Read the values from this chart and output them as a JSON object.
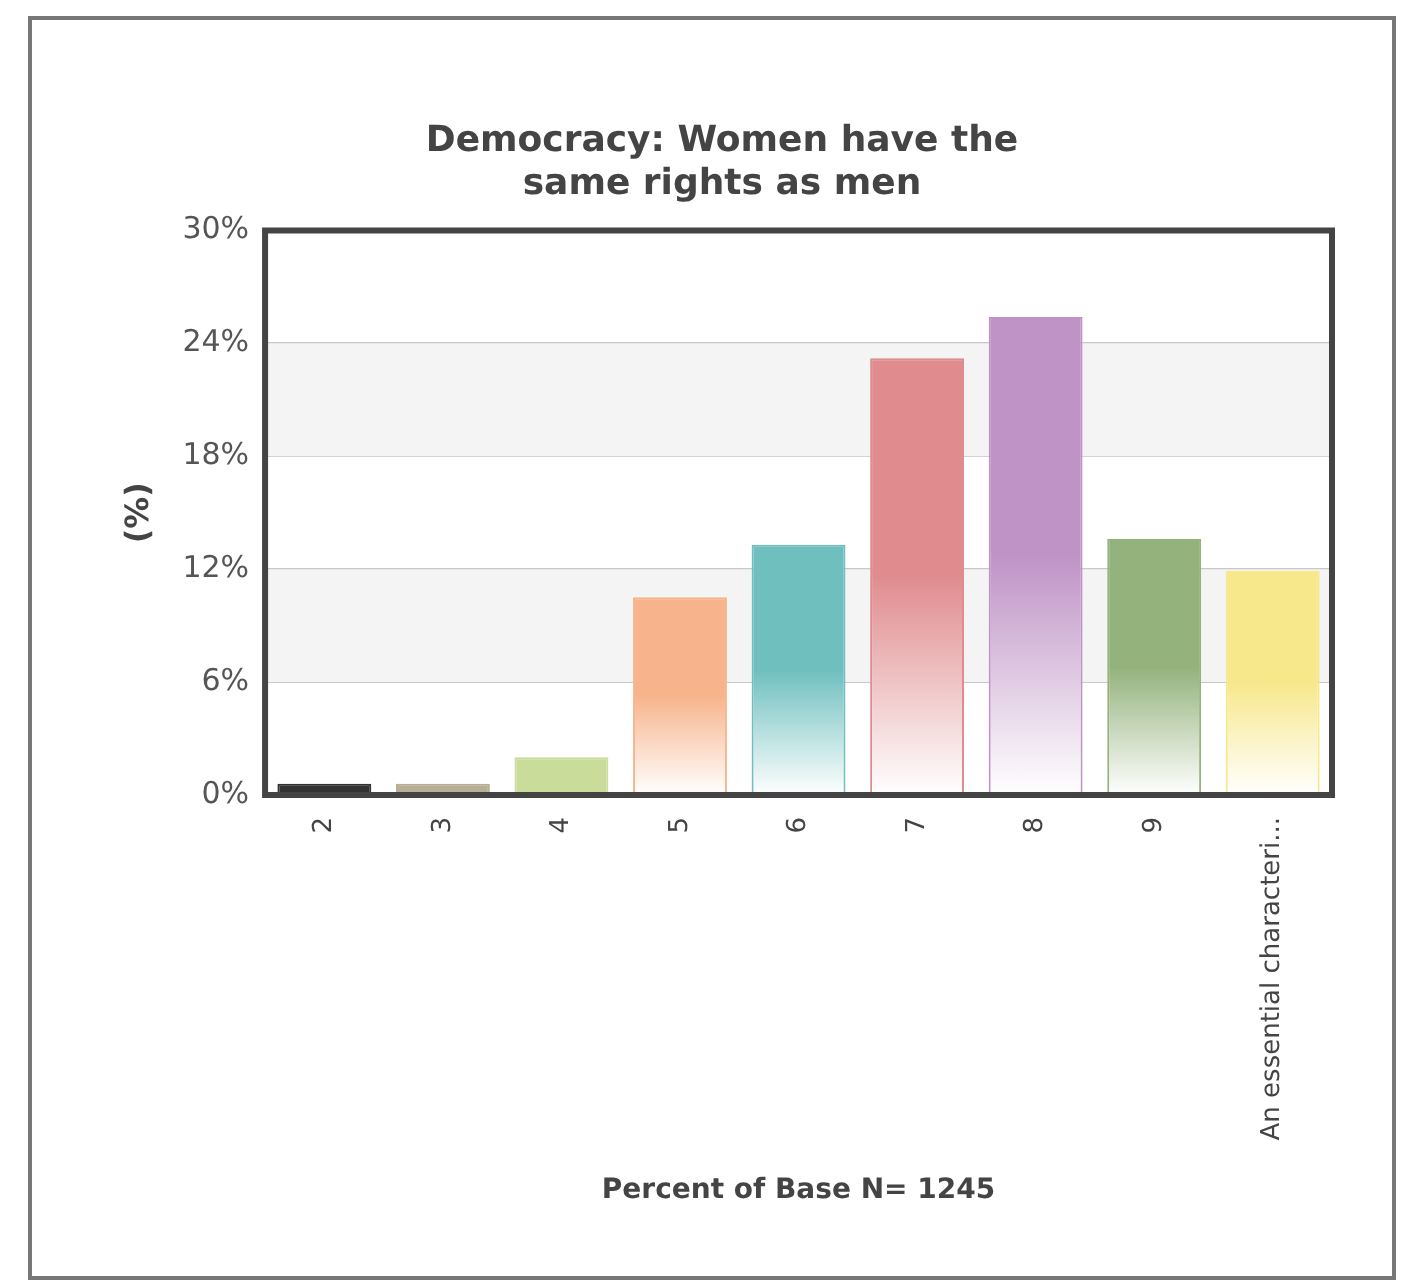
{
  "chart_data": {
    "type": "bar",
    "title": "Democracy: Women have the same rights as men",
    "xlabel": "Percent of Base N= 1245",
    "ylabel": "(%)",
    "categories": [
      "2",
      "3",
      "4",
      "5",
      "6",
      "7",
      "8",
      "9",
      "An essential characteri..."
    ],
    "values": [
      0.6,
      0.6,
      2.0,
      10.5,
      13.3,
      23.2,
      25.4,
      13.6,
      11.9
    ],
    "colors": [
      "#333333",
      "#b8ad95",
      "#c9dc9a",
      "#f7b48c",
      "#6fbfbf",
      "#e08c8f",
      "#bf93c6",
      "#94b27c",
      "#f7e88c"
    ],
    "ylim": [
      0,
      30
    ],
    "yticks": [
      {
        "value": 0,
        "label": "0%"
      },
      {
        "value": 6,
        "label": "6%"
      },
      {
        "value": 12,
        "label": "12%"
      },
      {
        "value": 18,
        "label": "18%"
      },
      {
        "value": 24,
        "label": "24%"
      },
      {
        "value": 30,
        "label": "30%"
      }
    ],
    "grid": "y",
    "legend": false
  }
}
